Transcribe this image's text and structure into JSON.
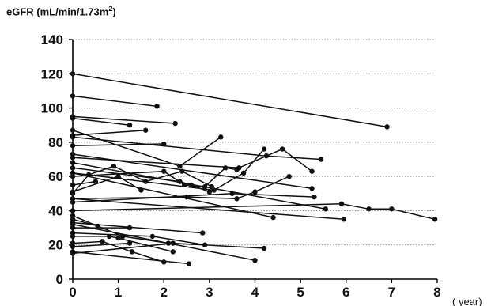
{
  "chart_data": {
    "type": "line",
    "ylabel_main": "eGFR (mL/min/1.73m",
    "ylabel_sup": "2",
    "ylabel_tail": ")",
    "xlabel": "( year)",
    "xlim": [
      0,
      8
    ],
    "ylim": [
      0,
      140
    ],
    "x_ticks": [
      0,
      1,
      2,
      3,
      4,
      5,
      6,
      7,
      8
    ],
    "y_ticks": [
      0,
      20,
      40,
      60,
      80,
      100,
      120,
      140
    ],
    "grid": "horizontal-dashed",
    "series": [
      {
        "x": [
          0,
          6.9
        ],
        "y": [
          120,
          89
        ]
      },
      {
        "x": [
          0,
          1.85
        ],
        "y": [
          107,
          101
        ]
      },
      {
        "x": [
          0,
          2.25
        ],
        "y": [
          95,
          91
        ]
      },
      {
        "x": [
          0,
          1.25
        ],
        "y": [
          94,
          90
        ]
      },
      {
        "x": [
          0,
          2.35,
          3.25
        ],
        "y": [
          87,
          66,
          83
        ]
      },
      {
        "x": [
          0,
          1.6
        ],
        "y": [
          84,
          87
        ]
      },
      {
        "x": [
          0,
          4.25,
          5.45
        ],
        "y": [
          83,
          72,
          70
        ]
      },
      {
        "x": [
          0,
          2.0
        ],
        "y": [
          78,
          79
        ]
      },
      {
        "x": [
          0,
          5.25
        ],
        "y": [
          73,
          53
        ]
      },
      {
        "x": [
          0,
          3.65,
          4.6,
          5.25
        ],
        "y": [
          71,
          65,
          76,
          63
        ]
      },
      {
        "x": [
          0,
          5.55
        ],
        "y": [
          68,
          41
        ]
      },
      {
        "x": [
          0,
          2.35,
          2.6,
          3.0
        ],
        "y": [
          65,
          57,
          55,
          51
        ]
      },
      {
        "x": [
          0,
          3.1,
          3.75,
          4.2
        ],
        "y": [
          62,
          52,
          62,
          76
        ]
      },
      {
        "x": [
          0,
          4.4
        ],
        "y": [
          62,
          36
        ]
      },
      {
        "x": [
          0,
          2.0,
          2.45,
          2.9,
          3.35,
          3.6
        ],
        "y": [
          60,
          63,
          55,
          54,
          65,
          64
        ]
      },
      {
        "x": [
          0,
          0.5
        ],
        "y": [
          55,
          57
        ]
      },
      {
        "x": [
          0,
          1.0,
          1.5
        ],
        "y": [
          51,
          60,
          52
        ]
      },
      {
        "x": [
          0,
          0.35,
          0.9,
          1.6,
          2.4,
          3.05
        ],
        "y": [
          50,
          61,
          66,
          57,
          63,
          54
        ]
      },
      {
        "x": [
          0,
          2.5,
          3.6,
          4.0,
          4.75
        ],
        "y": [
          47,
          48,
          47,
          51,
          60
        ]
      },
      {
        "x": [
          0,
          5.95
        ],
        "y": [
          47,
          35
        ]
      },
      {
        "x": [
          0,
          3.5,
          5.3
        ],
        "y": [
          45,
          50,
          48
        ]
      },
      {
        "x": [
          0,
          5.9,
          6.5,
          7.0,
          7.95
        ],
        "y": [
          40,
          44,
          41,
          41,
          35
        ]
      },
      {
        "x": [
          0,
          1.1,
          2.1
        ],
        "y": [
          37,
          25,
          21
        ]
      },
      {
        "x": [
          0,
          0.55
        ],
        "y": [
          35,
          31
        ]
      },
      {
        "x": [
          0,
          2.85
        ],
        "y": [
          33,
          27
        ]
      },
      {
        "x": [
          0,
          4.0
        ],
        "y": [
          32,
          11
        ]
      },
      {
        "x": [
          0,
          1.25
        ],
        "y": [
          30,
          30
        ]
      },
      {
        "x": [
          0,
          1.75,
          2.9
        ],
        "y": [
          27,
          25,
          20
        ]
      },
      {
        "x": [
          0,
          0.8,
          1.0,
          2.2
        ],
        "y": [
          25,
          25,
          24,
          16
        ]
      },
      {
        "x": [
          0,
          0.65,
          1.3,
          2.0
        ],
        "y": [
          21,
          22,
          16,
          10
        ]
      },
      {
        "x": [
          0,
          1.25
        ],
        "y": [
          19,
          21
        ]
      },
      {
        "x": [
          0,
          2.55
        ],
        "y": [
          16,
          9
        ]
      },
      {
        "x": [
          0,
          2.2,
          4.2
        ],
        "y": [
          15,
          21,
          18
        ]
      }
    ]
  }
}
